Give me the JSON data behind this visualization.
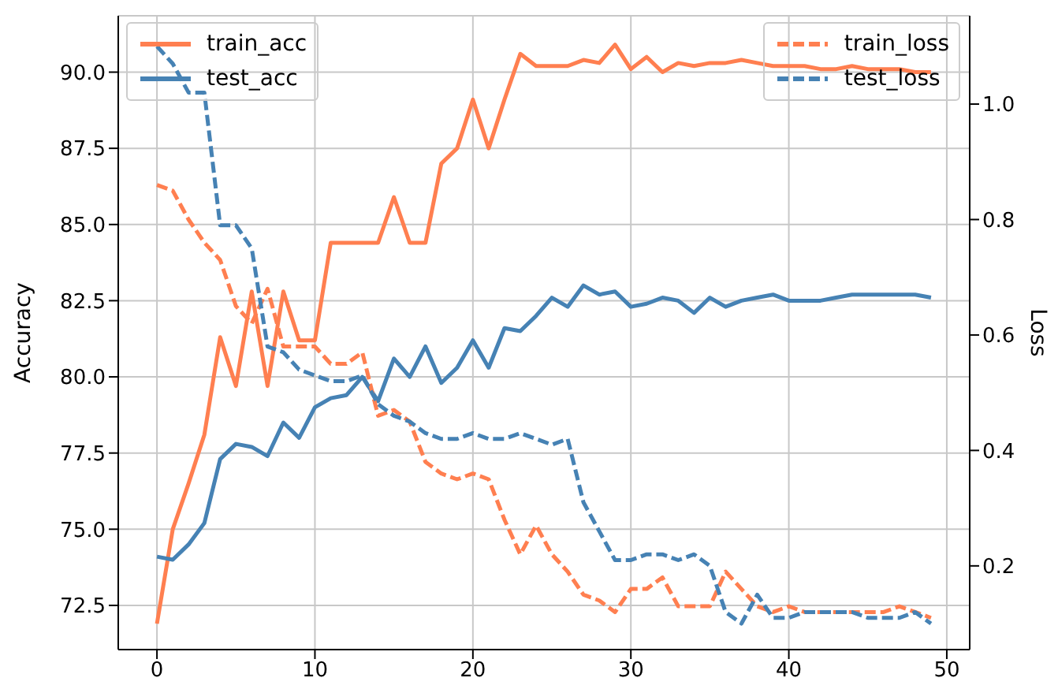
{
  "chart_data": {
    "type": "line",
    "xlabel": null,
    "ylabel": "Accuracy",
    "y2label": "Loss",
    "x": [
      0,
      1,
      2,
      3,
      4,
      5,
      6,
      7,
      8,
      9,
      10,
      11,
      12,
      13,
      14,
      15,
      16,
      17,
      18,
      19,
      20,
      21,
      22,
      23,
      24,
      25,
      26,
      27,
      28,
      29,
      30,
      31,
      32,
      33,
      34,
      35,
      36,
      37,
      38,
      39,
      40,
      41,
      42,
      43,
      44,
      45,
      46,
      47,
      48,
      49
    ],
    "series": [
      {
        "name": "train_acc",
        "color": "#ff7f50",
        "line_style": "solid",
        "values": [
          71.9,
          75.0,
          76.5,
          78.1,
          81.3,
          79.7,
          82.8,
          79.7,
          82.8,
          81.2,
          81.2,
          84.4,
          84.4,
          84.4,
          84.4,
          85.9,
          84.4,
          84.4,
          87.0,
          87.5,
          89.1,
          87.5,
          89.1,
          90.6,
          90.2,
          90.2,
          90.2,
          90.4,
          90.3,
          90.9,
          90.1,
          90.5,
          90.0,
          90.3,
          90.2,
          90.3,
          90.3,
          90.4,
          90.3,
          90.2,
          90.2,
          90.2,
          90.1,
          90.1,
          90.2,
          90.1,
          90.1,
          90.1,
          90.0,
          90.0
        ]
      },
      {
        "name": "test_acc",
        "color": "#4682b4",
        "line_style": "solid",
        "values": [
          74.1,
          74.0,
          74.5,
          75.2,
          77.3,
          77.8,
          77.7,
          77.4,
          78.5,
          78.0,
          79.0,
          79.3,
          79.4,
          80.0,
          79.2,
          80.6,
          80.0,
          81.0,
          79.8,
          80.3,
          81.2,
          80.3,
          81.6,
          81.5,
          82.0,
          82.6,
          82.3,
          83.0,
          82.7,
          82.8,
          82.3,
          82.4,
          82.6,
          82.5,
          82.1,
          82.6,
          82.3,
          82.5,
          82.6,
          82.7,
          82.5,
          82.5,
          82.5,
          82.6,
          82.7,
          82.7,
          82.7,
          82.7,
          82.7,
          82.6
        ]
      },
      {
        "name": "train_loss",
        "color": "#ff7f50",
        "line_style": "dashed",
        "axis": "y2",
        "values": [
          0.86,
          0.85,
          0.8,
          0.76,
          0.73,
          0.65,
          0.62,
          0.68,
          0.58,
          0.58,
          0.58,
          0.55,
          0.55,
          0.57,
          0.46,
          0.47,
          0.45,
          0.38,
          0.36,
          0.35,
          0.36,
          0.35,
          0.28,
          0.22,
          0.27,
          0.22,
          0.19,
          0.15,
          0.14,
          0.12,
          0.16,
          0.16,
          0.18,
          0.13,
          0.13,
          0.13,
          0.19,
          0.16,
          0.13,
          0.12,
          0.13,
          0.12,
          0.12,
          0.12,
          0.12,
          0.12,
          0.12,
          0.13,
          0.12,
          0.11
        ]
      },
      {
        "name": "test_loss",
        "color": "#4682b4",
        "line_style": "dashed",
        "axis": "y2",
        "values": [
          1.1,
          1.07,
          1.02,
          1.02,
          0.79,
          0.79,
          0.75,
          0.58,
          0.57,
          0.54,
          0.53,
          0.52,
          0.52,
          0.53,
          0.48,
          0.46,
          0.45,
          0.43,
          0.42,
          0.42,
          0.43,
          0.42,
          0.42,
          0.43,
          0.42,
          0.41,
          0.42,
          0.31,
          0.26,
          0.21,
          0.21,
          0.22,
          0.22,
          0.21,
          0.22,
          0.2,
          0.12,
          0.1,
          0.15,
          0.11,
          0.11,
          0.12,
          0.12,
          0.12,
          0.12,
          0.11,
          0.11,
          0.11,
          0.12,
          0.1
        ]
      }
    ],
    "xlim": [
      -2.45,
      51.45
    ],
    "xticks": [
      0,
      10,
      20,
      30,
      40,
      50
    ],
    "ylim": [
      71.05,
      91.85
    ],
    "yticks": [
      {
        "value": 72.5,
        "label": "72.5"
      },
      {
        "value": 75,
        "label": "75.0"
      },
      {
        "value": 77.5,
        "label": "77.5"
      },
      {
        "value": 80,
        "label": "80.0"
      },
      {
        "value": 82.5,
        "label": "82.5"
      },
      {
        "value": 85,
        "label": "85.0"
      },
      {
        "value": 87.5,
        "label": "87.5"
      },
      {
        "value": 90,
        "label": "90.0"
      }
    ],
    "y2lim": [
      0.055,
      1.153
    ],
    "y2ticks": [
      0.2,
      0.4,
      0.6,
      0.8,
      {
        "value": 1,
        "label": "1.0"
      }
    ],
    "grid": true,
    "legend": "top",
    "marker": "none"
  }
}
